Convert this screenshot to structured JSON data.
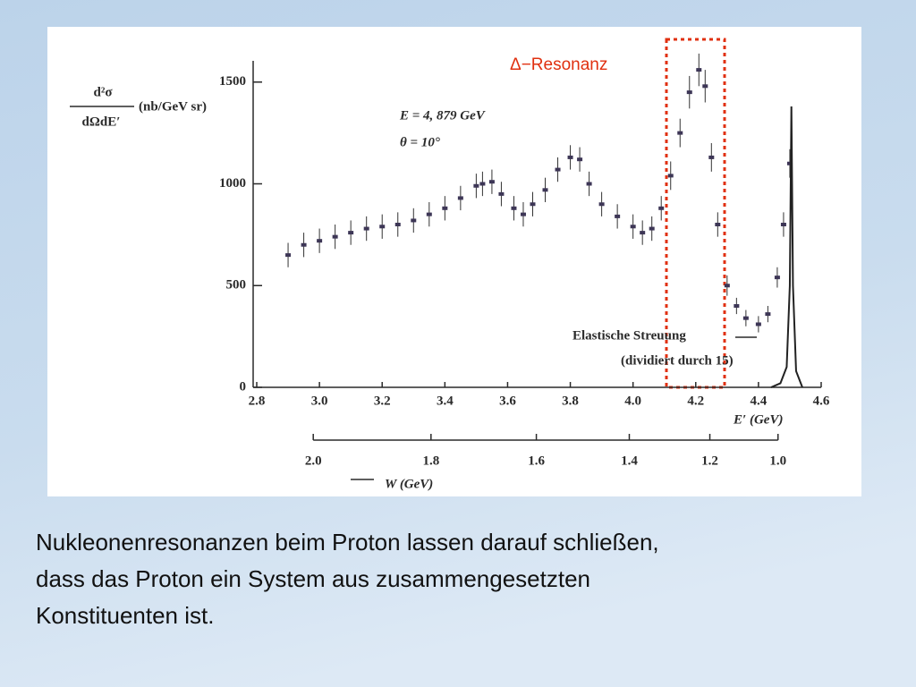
{
  "chart_data": {
    "type": "scatter",
    "ylabel_numerator": "d²σ",
    "ylabel_denominator": "dΩdE′",
    "ylabel_units": "(nb/GeV sr)",
    "xlabel": "E′ (GeV)",
    "x2label": "W (GeV)",
    "highlight_label": "Δ−Resonanz",
    "beam_energy": {
      "value": 4.879,
      "label": "E = 4, 879 GeV"
    },
    "angle": {
      "value": 10,
      "label": "θ = 10°"
    },
    "elastic_note": "Elastische Streuung",
    "elastic_note2": "(dividiert durch 15)",
    "xlim": [
      2.8,
      4.6
    ],
    "xticks": [
      2.8,
      {
        "value": 3,
        "label": "3.0"
      },
      3.2,
      3.4,
      3.6,
      3.8,
      {
        "value": 4,
        "label": "4.0"
      },
      4.2,
      4.4,
      4.6
    ],
    "x2ticks": [
      {
        "value": 2,
        "label": "2.0"
      },
      1.8,
      1.6,
      1.4,
      1.2,
      {
        "value": 1,
        "label": "1.0"
      }
    ],
    "ylim": [
      0,
      1600
    ],
    "yticks": [
      0,
      500,
      1000,
      1500
    ],
    "series": [
      {
        "type": "scatter",
        "color": "#3d3656",
        "x": [
          2.9,
          2.95,
          3.0,
          3.05,
          3.1,
          3.15,
          3.2,
          3.25,
          3.3,
          3.35,
          3.4,
          3.45,
          3.5,
          3.52,
          3.55,
          3.58,
          3.62,
          3.65,
          3.68,
          3.72,
          3.76,
          3.8,
          3.83,
          3.86,
          3.9,
          3.95,
          4.0,
          4.03,
          4.06,
          4.09,
          4.12,
          4.15,
          4.18,
          4.21,
          4.23,
          4.25,
          4.27,
          4.3,
          4.33,
          4.36,
          4.4,
          4.43,
          4.46,
          4.48,
          4.5
        ],
        "values": [
          650,
          700,
          720,
          740,
          760,
          780,
          790,
          800,
          820,
          850,
          880,
          930,
          990,
          1000,
          1010,
          950,
          880,
          850,
          900,
          970,
          1070,
          1130,
          1120,
          1000,
          900,
          840,
          790,
          760,
          780,
          880,
          1040,
          1250,
          1450,
          1560,
          1480,
          1130,
          800,
          500,
          400,
          340,
          310,
          360,
          540,
          800,
          1100
        ],
        "errors": [
          60,
          60,
          60,
          60,
          60,
          60,
          60,
          60,
          60,
          60,
          60,
          60,
          60,
          60,
          60,
          60,
          60,
          60,
          60,
          60,
          60,
          60,
          60,
          60,
          60,
          60,
          60,
          60,
          60,
          60,
          70,
          70,
          80,
          80,
          80,
          70,
          60,
          50,
          40,
          40,
          40,
          40,
          50,
          60,
          70
        ]
      },
      {
        "type": "line",
        "color": "#222222",
        "x": [
          4.44,
          4.47,
          4.49,
          4.5,
          4.505,
          4.51,
          4.52,
          4.54
        ],
        "values": [
          0,
          20,
          100,
          500,
          1380,
          500,
          80,
          0
        ]
      }
    ]
  },
  "caption": [
    "Nukleonenresonanzen beim Proton lassen darauf schließen,",
    "dass das Proton ein System aus zusammengesetzten",
    "Konstituenten ist."
  ]
}
